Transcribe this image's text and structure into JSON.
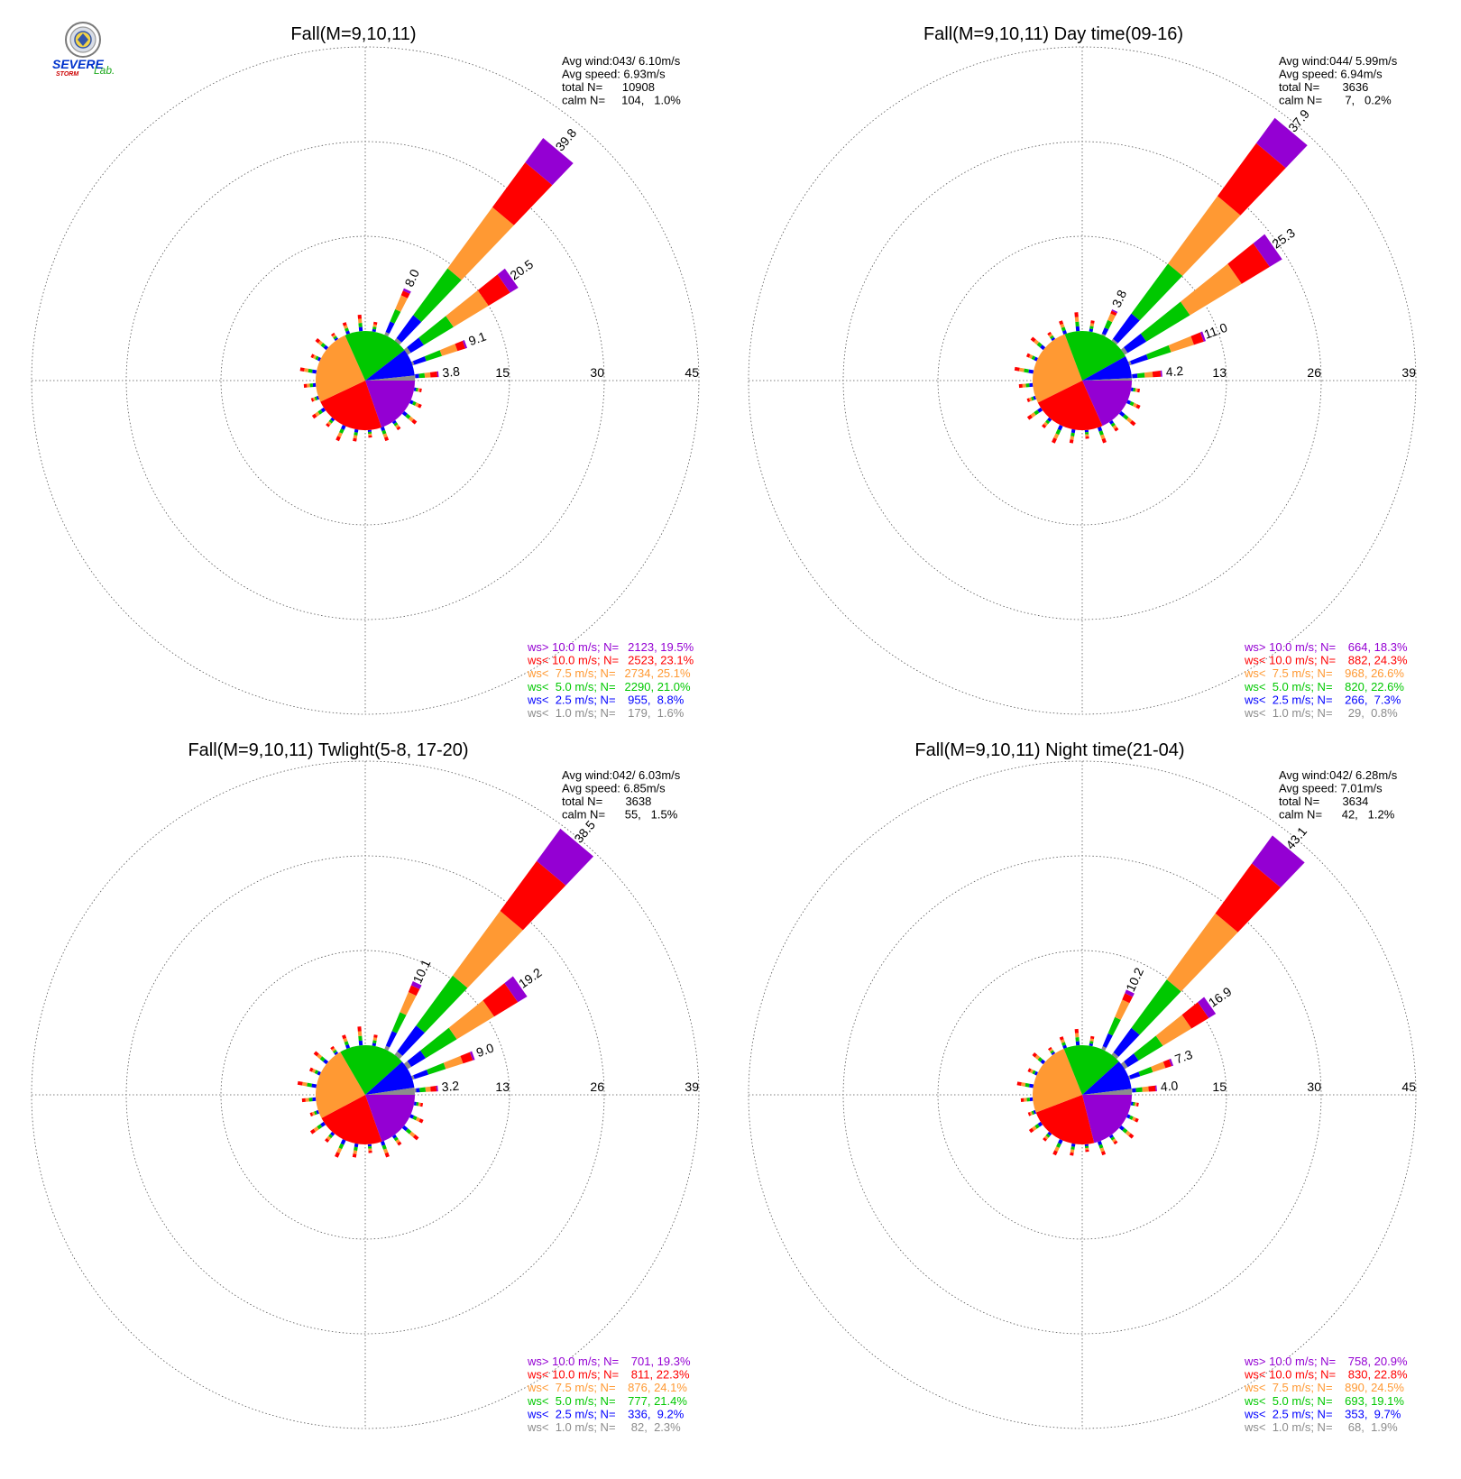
{
  "logo": {
    "line1": "SEVERE",
    "line2": "STORM",
    "line3": "Lab."
  },
  "colors": {
    "gt10": "#9400d3",
    "lt10": "#ff0000",
    "lt75": "#ff9933",
    "lt5": "#00c800",
    "lt25": "#0000ff",
    "lt1": "#8c8c8c",
    "grid": "#555555"
  },
  "chart_data": [
    {
      "type": "windrose",
      "title": "Fall(M=9,10,11)",
      "rmax": 45,
      "ring_labels": [
        "15",
        "30",
        "45"
      ],
      "stats": {
        "line1": "Avg wind:043/ 6.10m/s",
        "line2": "Avg speed: 6.93m/s",
        "line3": "total N=      10908",
        "line4": "calm N=     104,   1.0%"
      },
      "spoke_labels": [
        {
          "dir": 0,
          "text": "3.8"
        },
        {
          "dir": 1,
          "text": "9.1"
        },
        {
          "dir": 2,
          "text": "20.5"
        },
        {
          "dir": 3,
          "text": "39.8"
        },
        {
          "dir": 4,
          "text": "8.0"
        }
      ],
      "pie": [
        19.5,
        23.1,
        25.1,
        21.0,
        8.8,
        1.6
      ],
      "legend": [
        {
          "cls": "gt10",
          "label": "ws> 10.0 m/s; N=",
          "value": "2123, 19.5%"
        },
        {
          "cls": "lt10",
          "label": "ws< 10.0 m/s; N=",
          "value": "2523, 23.1%"
        },
        {
          "cls": "lt75",
          "label": "ws<  7.5 m/s; N=",
          "value": "2734, 25.1%"
        },
        {
          "cls": "lt5",
          "label": "ws<  5.0 m/s; N=",
          "value": "2290, 21.0%"
        },
        {
          "cls": "lt25",
          "label": "ws<  2.5 m/s; N=",
          "value": " 955,  8.8%"
        },
        {
          "cls": "lt1",
          "label": "ws<  1.0 m/s; N=",
          "value": " 179,  1.6%"
        }
      ],
      "sectors": [
        {
          "dir": 0,
          "total": 3.8,
          "parts": [
            0.1,
            0.6,
            0.9,
            0.9,
            1.1,
            0.2
          ]
        },
        {
          "dir": 1,
          "total": 9.1,
          "parts": [
            0.3,
            2.0,
            2.6,
            2.6,
            1.3,
            0.3
          ]
        },
        {
          "dir": 2,
          "total": 20.5,
          "parts": [
            0.6,
            2.4,
            5.5,
            6.5,
            4.0,
            1.5
          ]
        },
        {
          "dir": 3,
          "total": 39.8,
          "parts": [
            0.5,
            4.5,
            9.2,
            12.0,
            8.8,
            4.8
          ]
        },
        {
          "dir": 4,
          "total": 8.0,
          "parts": [
            0.5,
            1.8,
            2.1,
            2.4,
            0.8,
            0.4
          ]
        }
      ]
    },
    {
      "type": "windrose",
      "title": "Fall(M=9,10,11) Day time(09-16)",
      "rmax": 39,
      "ring_labels": [
        "13",
        "26",
        "39"
      ],
      "stats": {
        "line1": "Avg wind:044/ 5.99m/s",
        "line2": "Avg speed: 6.94m/s",
        "line3": "total N=       3636",
        "line4": "calm N=       7,   0.2%"
      },
      "spoke_labels": [
        {
          "dir": 0,
          "text": "4.2"
        },
        {
          "dir": 1,
          "text": "11.0"
        },
        {
          "dir": 2,
          "text": "25.3"
        },
        {
          "dir": 3,
          "text": "37.9"
        },
        {
          "dir": 4,
          "text": "3.8"
        }
      ],
      "pie": [
        18.3,
        24.3,
        26.6,
        22.6,
        7.3,
        0.8
      ],
      "legend": [
        {
          "cls": "gt10",
          "label": "ws> 10.0 m/s; N=",
          "value": " 664, 18.3%"
        },
        {
          "cls": "lt10",
          "label": "ws< 10.0 m/s; N=",
          "value": " 882, 24.3%"
        },
        {
          "cls": "lt75",
          "label": "ws<  7.5 m/s; N=",
          "value": " 968, 26.6%"
        },
        {
          "cls": "lt5",
          "label": "ws<  5.0 m/s; N=",
          "value": " 820, 22.6%"
        },
        {
          "cls": "lt25",
          "label": "ws<  2.5 m/s; N=",
          "value": " 266,  7.3%"
        },
        {
          "cls": "lt1",
          "label": "ws<  1.0 m/s; N=",
          "value": "  29,  0.8%"
        }
      ],
      "sectors": [
        {
          "dir": 0,
          "total": 4.2,
          "parts": [
            0.1,
            0.7,
            1.0,
            1.1,
            1.1,
            0.2
          ]
        },
        {
          "dir": 1,
          "total": 11.0,
          "parts": [
            0.3,
            2.4,
            3.3,
            3.3,
            1.4,
            0.3
          ]
        },
        {
          "dir": 2,
          "total": 25.3,
          "parts": [
            0.5,
            3.0,
            7.0,
            8.3,
            4.5,
            2.0
          ]
        },
        {
          "dir": 3,
          "total": 37.9,
          "parts": [
            0.3,
            4.3,
            8.5,
            11.5,
            9.0,
            4.3
          ]
        },
        {
          "dir": 4,
          "total": 3.8,
          "parts": [
            0.2,
            0.9,
            1.1,
            1.0,
            0.4,
            0.2
          ]
        }
      ]
    },
    {
      "type": "windrose",
      "title": "Fall(M=9,10,11) Twlight(5-8, 17-20)",
      "rmax": 39,
      "ring_labels": [
        "13",
        "26",
        "39"
      ],
      "stats": {
        "line1": "Avg wind:042/ 6.03m/s",
        "line2": "Avg speed: 6.85m/s",
        "line3": "total N=       3638",
        "line4": "calm N=      55,   1.5%"
      },
      "spoke_labels": [
        {
          "dir": 0,
          "text": "3.2"
        },
        {
          "dir": 1,
          "text": "9.0"
        },
        {
          "dir": 2,
          "text": "19.2"
        },
        {
          "dir": 3,
          "text": "38.5"
        },
        {
          "dir": 4,
          "text": "10.1"
        }
      ],
      "pie": [
        19.3,
        22.3,
        24.1,
        21.4,
        9.2,
        2.3
      ],
      "legend": [
        {
          "cls": "gt10",
          "label": "ws> 10.0 m/s; N=",
          "value": " 701, 19.3%"
        },
        {
          "cls": "lt10",
          "label": "ws< 10.0 m/s; N=",
          "value": " 811, 22.3%"
        },
        {
          "cls": "lt75",
          "label": "ws<  7.5 m/s; N=",
          "value": " 876, 24.1%"
        },
        {
          "cls": "lt5",
          "label": "ws<  5.0 m/s; N=",
          "value": " 777, 21.4%"
        },
        {
          "cls": "lt25",
          "label": "ws<  2.5 m/s; N=",
          "value": " 336,  9.2%"
        },
        {
          "cls": "lt1",
          "label": "ws<  1.0 m/s; N=",
          "value": "  82,  2.3%"
        }
      ],
      "sectors": [
        {
          "dir": 0,
          "total": 3.2,
          "parts": [
            0.2,
            0.5,
            0.8,
            0.7,
            0.8,
            0.2
          ]
        },
        {
          "dir": 1,
          "total": 9.0,
          "parts": [
            0.3,
            2.0,
            2.5,
            2.5,
            1.4,
            0.3
          ]
        },
        {
          "dir": 2,
          "total": 19.2,
          "parts": [
            0.6,
            2.3,
            5.0,
            6.0,
            3.8,
            1.5
          ]
        },
        {
          "dir": 3,
          "total": 38.5,
          "parts": [
            0.6,
            4.4,
            8.5,
            11.0,
            8.5,
            5.5
          ]
        },
        {
          "dir": 4,
          "total": 10.1,
          "parts": [
            0.5,
            2.2,
            2.8,
            3.0,
            1.0,
            0.6
          ]
        }
      ]
    },
    {
      "type": "windrose",
      "title": "Fall(M=9,10,11) Night time(21-04)",
      "rmax": 45,
      "ring_labels": [
        "15",
        "30",
        "45"
      ],
      "stats": {
        "line1": "Avg wind:042/ 6.28m/s",
        "line2": "Avg speed: 7.01m/s",
        "line3": "total N=       3634",
        "line4": "calm N=      42,   1.2%"
      },
      "spoke_labels": [
        {
          "dir": 0,
          "text": "4.0"
        },
        {
          "dir": 1,
          "text": "7.3"
        },
        {
          "dir": 2,
          "text": "16.9"
        },
        {
          "dir": 3,
          "text": "43.1"
        },
        {
          "dir": 4,
          "text": "10.2"
        }
      ],
      "pie": [
        20.9,
        22.8,
        24.5,
        19.1,
        9.7,
        1.9
      ],
      "legend": [
        {
          "cls": "gt10",
          "label": "ws> 10.0 m/s; N=",
          "value": " 758, 20.9%"
        },
        {
          "cls": "lt10",
          "label": "ws< 10.0 m/s; N=",
          "value": " 830, 22.8%"
        },
        {
          "cls": "lt75",
          "label": "ws<  7.5 m/s; N=",
          "value": " 890, 24.5%"
        },
        {
          "cls": "lt5",
          "label": "ws<  5.0 m/s; N=",
          "value": " 693, 19.1%"
        },
        {
          "cls": "lt25",
          "label": "ws<  2.5 m/s; N=",
          "value": " 353,  9.7%"
        },
        {
          "cls": "lt1",
          "label": "ws<  1.0 m/s; N=",
          "value": "  68,  1.9%"
        }
      ],
      "sectors": [
        {
          "dir": 0,
          "total": 4.0,
          "parts": [
            0.1,
            0.6,
            1.0,
            1.0,
            1.1,
            0.2
          ]
        },
        {
          "dir": 1,
          "total": 7.3,
          "parts": [
            0.2,
            1.6,
            2.1,
            2.1,
            1.0,
            0.3
          ]
        },
        {
          "dir": 2,
          "total": 16.9,
          "parts": [
            0.6,
            2.0,
            4.5,
            5.3,
            3.2,
            1.3
          ]
        },
        {
          "dir": 3,
          "total": 43.1,
          "parts": [
            0.5,
            4.8,
            9.5,
            13.0,
            9.8,
            5.5
          ]
        },
        {
          "dir": 4,
          "total": 10.2,
          "parts": [
            0.5,
            2.2,
            2.8,
            3.0,
            1.1,
            0.6
          ]
        }
      ]
    }
  ]
}
